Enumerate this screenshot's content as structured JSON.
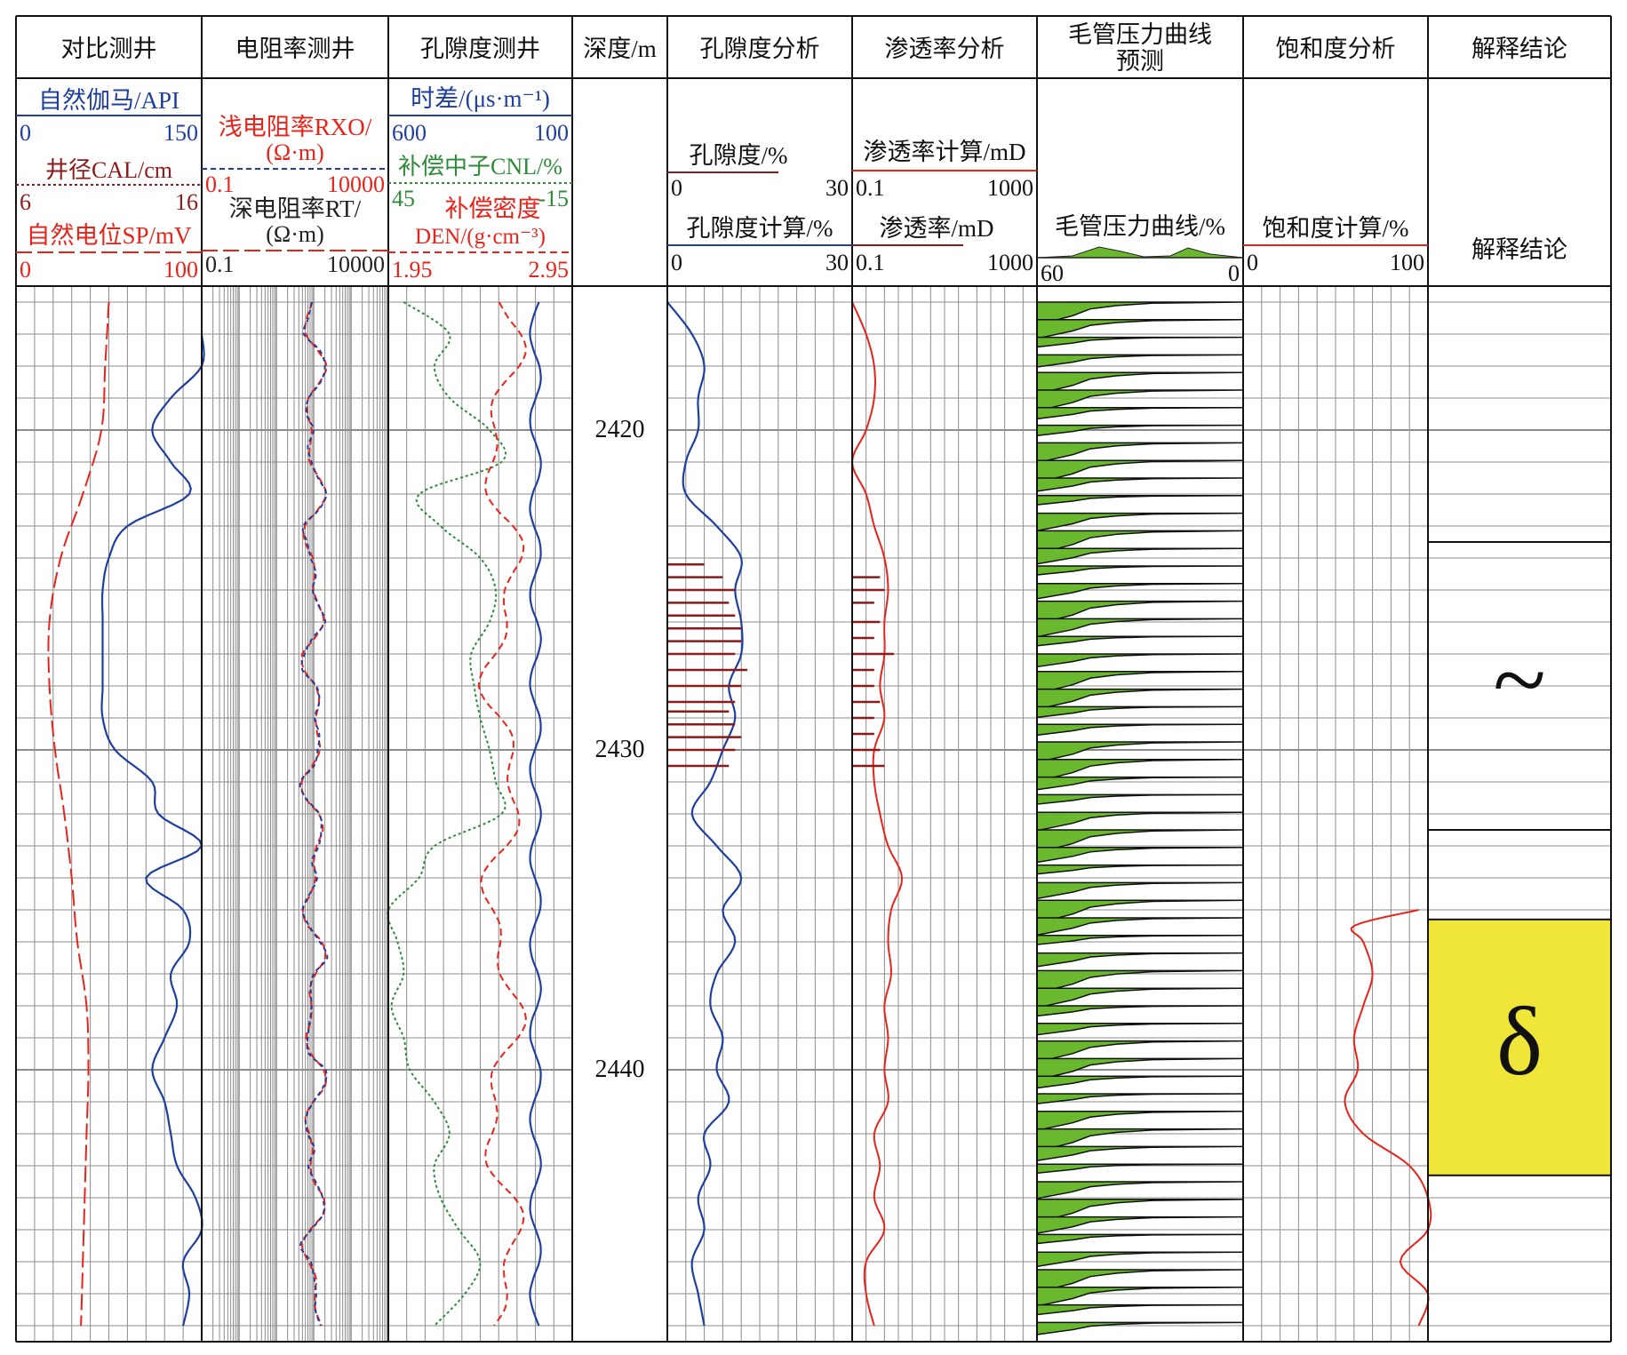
{
  "tracks": [
    {
      "title": "对比测井",
      "header_curves": [
        {
          "label": "自然伽马/API",
          "min": "0",
          "max": "150",
          "color": "#1f3fa0"
        },
        {
          "label": "井径CAL/cm",
          "min": "6",
          "max": "16",
          "color": "#8b1a1a"
        },
        {
          "label": "自然电位SP/mV",
          "min": "0",
          "max": "100",
          "color": "#e8231a"
        }
      ]
    },
    {
      "title": "电阻率测井",
      "header_curves": [
        {
          "label": "浅电阻率RXO/",
          "unit": "(Ω·m)",
          "min": "0.1",
          "max": "10000",
          "color": "#e8231a"
        },
        {
          "label": "深电阻率RT/",
          "unit": "(Ω·m)",
          "min": "0.1",
          "max": "10000",
          "color": "#222222"
        }
      ]
    },
    {
      "title": "孔隙度测井",
      "header_curves": [
        {
          "label": "时差/(μs·m⁻¹)",
          "min": "600",
          "max": "100",
          "color": "#1f3fa0"
        },
        {
          "label": "补偿中子CNL/%",
          "min": "45",
          "max": "-15",
          "color": "#2e8b3a"
        },
        {
          "label": "补偿密度",
          "unit": "DEN/(g·cm⁻³)",
          "min": "1.95",
          "max": "2.95",
          "color": "#e8231a"
        }
      ]
    },
    {
      "title": "深度/m"
    },
    {
      "title": "孔隙度分析",
      "header_curves": [
        {
          "label": "孔隙度/%",
          "min": "0",
          "max": "30",
          "color": "#8b1a1a"
        },
        {
          "label": "孔隙度计算/%",
          "min": "0",
          "max": "30",
          "color": "#1f3fa0"
        }
      ]
    },
    {
      "title": "渗透率分析",
      "header_curves": [
        {
          "label": "渗透率计算/mD",
          "min": "0.1",
          "max": "1000",
          "color": "#e8231a"
        },
        {
          "label": "渗透率/mD",
          "min": "0.1",
          "max": "1000",
          "color": "#8b1a1a"
        }
      ]
    },
    {
      "title": "毛管压力曲线",
      "title2": "预测",
      "header_curves": [
        {
          "label": "毛管压力曲线/%",
          "min": "60",
          "max": "0",
          "color": "#6ab82e"
        }
      ]
    },
    {
      "title": "饱和度分析",
      "header_curves": [
        {
          "label": "饱和度计算/%",
          "min": "0",
          "max": "100",
          "color": "#e8231a"
        }
      ]
    },
    {
      "title": "解释结论",
      "header_curves": [
        {
          "label": "解释结论"
        }
      ]
    }
  ],
  "colors": {
    "grid": "#8c8c8c",
    "gamma": "#1f3fa0",
    "sp": "#e8231a",
    "cal": "#8b1a1a",
    "neutron": "#2e8b3a",
    "capillary_fill": "#6ab82e",
    "oil_zone": "#f0e63a"
  },
  "chart_data": {
    "type": "well_log",
    "depth_axis": {
      "label": "深度/m",
      "min": 2415.5,
      "max": 2448.5,
      "ticks": [
        2420,
        2430,
        2440
      ]
    },
    "curves": {
      "gamma_ray_API": {
        "depth": [
          2417,
          2418,
          2419,
          2420,
          2421,
          2422,
          2423,
          2424,
          2425,
          2426,
          2427,
          2428,
          2429,
          2430,
          2431,
          2432,
          2433,
          2434,
          2435,
          2436,
          2437,
          2438,
          2439,
          2440,
          2441,
          2442,
          2443,
          2444,
          2445,
          2446,
          2447,
          2448
        ],
        "values": [
          150,
          150,
          125,
          110,
          125,
          140,
          90,
          75,
          70,
          70,
          70,
          70,
          70,
          80,
          110,
          115,
          150,
          105,
          135,
          140,
          125,
          130,
          120,
          110,
          120,
          125,
          130,
          145,
          150,
          135,
          140,
          135
        ]
      },
      "caliper_cm": {
        "depth": [
          2416,
          2418,
          2420,
          2422,
          2424,
          2426,
          2428,
          2430,
          2432,
          2434,
          2436,
          2438,
          2440,
          2442,
          2444,
          2446,
          2448
        ],
        "values": [
          11,
          10.8,
          10.6,
          9.6,
          8.4,
          7.8,
          7.8,
          8.1,
          8.6,
          9.0,
          9.3,
          9.8,
          9.9,
          9.8,
          9.7,
          9.6,
          9.5
        ]
      },
      "neutron_CNL_pct": {
        "depth": [
          2416,
          2417,
          2418,
          2419,
          2420,
          2421,
          2422,
          2423,
          2424,
          2425,
          2426,
          2427,
          2428,
          2429,
          2430,
          2431,
          2432,
          2433,
          2434,
          2435,
          2436,
          2437,
          2438,
          2439,
          2440,
          2441,
          2442,
          2443,
          2444,
          2445,
          2446,
          2447,
          2448
        ],
        "values": [
          40,
          25,
          30,
          25,
          12,
          8,
          35,
          28,
          15,
          10,
          12,
          18,
          17,
          15,
          12,
          10,
          8,
          30,
          35,
          45,
          42,
          40,
          44,
          40,
          38,
          30,
          25,
          30,
          28,
          22,
          15,
          20,
          30
        ]
      },
      "porosity_calc_pct": {
        "depth": [
          2416,
          2417,
          2418,
          2419,
          2420,
          2421,
          2422,
          2423,
          2424,
          2425,
          2426,
          2427,
          2428,
          2429,
          2430,
          2431,
          2432,
          2433,
          2434,
          2435,
          2436,
          2437,
          2438,
          2439,
          2440,
          2441,
          2442,
          2443,
          2444,
          2445,
          2446,
          2447,
          2448
        ],
        "values": [
          0,
          4,
          6,
          5,
          5,
          3,
          3,
          8,
          12,
          11,
          12,
          12,
          10,
          11,
          9,
          7,
          4,
          8,
          12,
          9,
          11,
          8,
          7,
          9,
          8,
          10,
          6,
          7,
          5,
          6,
          4,
          5,
          6
        ]
      },
      "porosity_core_pct": {
        "depth": [
          2424.2,
          2424.6,
          2425,
          2425.4,
          2425.8,
          2426.2,
          2426.6,
          2427,
          2427.5,
          2428,
          2428.5,
          2428.8,
          2429.2,
          2429.6,
          2430,
          2430.5
        ],
        "values": [
          6,
          9,
          11,
          10,
          11,
          12,
          12,
          11,
          13,
          12,
          11,
          10,
          11,
          12,
          11,
          10
        ]
      },
      "permeability_calc_mD": {
        "depth": [
          2416,
          2417,
          2418,
          2419,
          2420,
          2421,
          2422,
          2423,
          2424,
          2425,
          2426,
          2427,
          2428,
          2429,
          2430,
          2431,
          2432,
          2433,
          2434,
          2435,
          2436,
          2437,
          2438,
          2439,
          2440,
          2441,
          2442,
          2443,
          2444,
          2445,
          2446,
          2447,
          2448
        ],
        "values": [
          0.1,
          0.2,
          0.3,
          0.3,
          0.2,
          0.1,
          0.2,
          0.3,
          0.5,
          0.6,
          0.5,
          0.5,
          0.4,
          0.5,
          0.3,
          0.3,
          0.4,
          0.6,
          1.2,
          0.7,
          0.6,
          0.7,
          0.5,
          0.6,
          0.5,
          0.6,
          0.3,
          0.4,
          0.3,
          0.5,
          0.2,
          0.2,
          0.3
        ]
      },
      "permeability_core_mD": {
        "depth": [
          2424.6,
          2425,
          2425.4,
          2426,
          2426.5,
          2427,
          2427.5,
          2428,
          2428.5,
          2429,
          2429.5,
          2430,
          2430.5
        ],
        "values": [
          0.4,
          0.5,
          0.3,
          0.4,
          0.3,
          0.8,
          0.3,
          0.3,
          0.4,
          0.3,
          0.3,
          0.4,
          0.5
        ]
      },
      "saturation_calc_pct": {
        "depth": [
          2435,
          2435.5,
          2436,
          2437,
          2438,
          2439,
          2440,
          2441,
          2442,
          2443,
          2444,
          2445,
          2446,
          2447,
          2448
        ],
        "values": [
          95,
          60,
          65,
          70,
          65,
          60,
          62,
          55,
          65,
          90,
          100,
          100,
          85,
          100,
          95
        ]
      }
    },
    "interpretation_zones": [
      {
        "top": 2423.5,
        "bottom": 2432.5,
        "symbol": "~",
        "fill": "none"
      },
      {
        "top": 2435.3,
        "bottom": 2443.3,
        "symbol": "δ",
        "fill": "#f0e63a"
      }
    ]
  }
}
